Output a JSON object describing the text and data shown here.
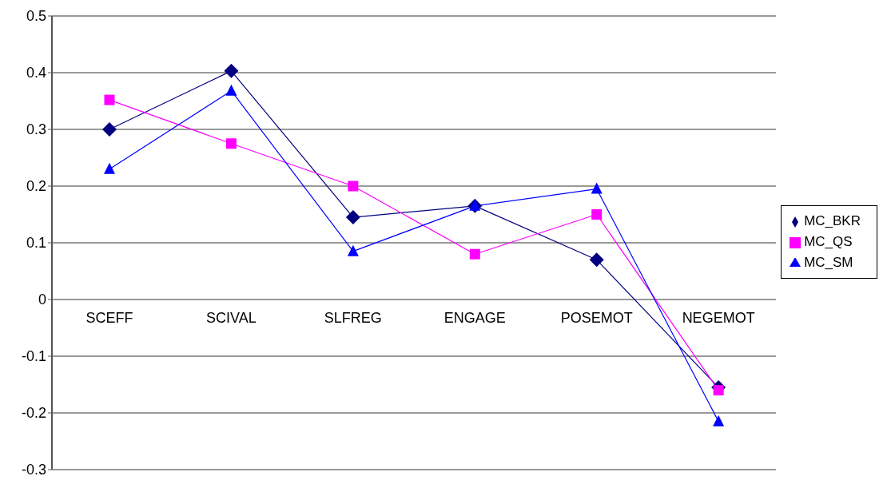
{
  "chart_data": {
    "type": "line",
    "categories": [
      "SCEFF",
      "SCIVAL",
      "SLFREG",
      "ENGAGE",
      "POSEMOT",
      "NEGEMOT"
    ],
    "series": [
      {
        "name": "MC_BKR",
        "color": "#000080",
        "marker": "diamond",
        "values": [
          0.3,
          0.403,
          0.145,
          0.165,
          0.07,
          -0.155
        ]
      },
      {
        "name": "MC_QS",
        "color": "#ff00ff",
        "marker": "square",
        "values": [
          0.352,
          0.275,
          0.2,
          0.08,
          0.15,
          -0.16
        ]
      },
      {
        "name": "MC_SM",
        "color": "#0000ff",
        "marker": "triangle",
        "values": [
          0.23,
          0.368,
          0.085,
          0.165,
          0.195,
          -0.215
        ]
      }
    ],
    "ylim": [
      -0.3,
      0.5
    ],
    "yticks": [
      -0.3,
      -0.2,
      -0.1,
      0,
      0.1,
      0.2,
      0.3,
      0.4,
      0.5
    ],
    "grid": "y",
    "legend": "right",
    "line_style": "solid"
  }
}
